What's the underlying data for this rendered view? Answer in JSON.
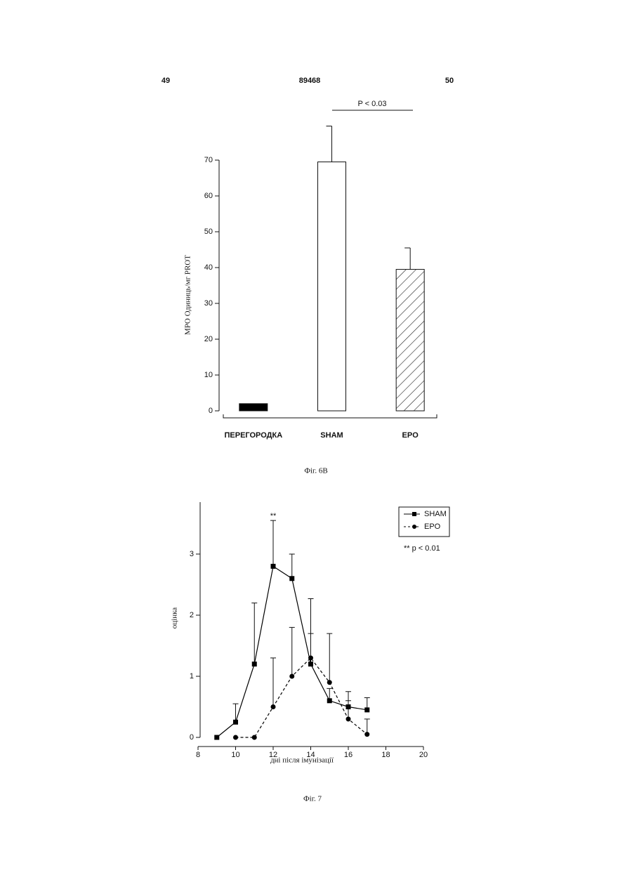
{
  "header": {
    "left": "49",
    "center": "89468",
    "right": "50"
  },
  "chart_data": [
    {
      "type": "bar",
      "ylabel": "MPO Одиниць/мг PROT",
      "categories": [
        "ПЕРЕГОРОДКА",
        "SHAM",
        "EPO"
      ],
      "values": [
        2,
        69.5,
        39.5
      ],
      "errors": [
        null,
        10,
        6
      ],
      "colors": [
        "#000000",
        "#ffffff",
        "#ffffff"
      ],
      "hatch": [
        false,
        false,
        true
      ],
      "ylim": [
        0,
        70
      ],
      "yticks": [
        0,
        10,
        20,
        30,
        40,
        50,
        60,
        70
      ],
      "annotation": "P < 0.03",
      "caption": "Фіг. 6В"
    },
    {
      "type": "line",
      "xlabel": "дні після імунізації",
      "ylabel": "оцінка",
      "x": [
        9,
        10,
        11,
        12,
        13,
        14,
        15,
        16,
        17
      ],
      "series": [
        {
          "name": "SHAM",
          "color": "#000000",
          "marker": "square",
          "dash": false,
          "values": [
            0,
            0.25,
            1.2,
            2.8,
            2.6,
            1.2,
            0.6,
            0.5,
            0.45
          ],
          "errors": [
            null,
            0.3,
            1.0,
            0.75,
            0.4,
            0.5,
            0.2,
            0.1,
            0.2
          ]
        },
        {
          "name": "EPO",
          "color": "#000000",
          "marker": "circle",
          "dash": true,
          "values": [
            null,
            0,
            0,
            0.5,
            1.0,
            1.3,
            0.9,
            0.3,
            0.05
          ],
          "errors": [
            null,
            null,
            null,
            0.8,
            0.8,
            0.97,
            0.8,
            0.45,
            0.25
          ]
        }
      ],
      "xlim": [
        8,
        20
      ],
      "xticks": [
        8,
        10,
        12,
        14,
        16,
        18,
        20
      ],
      "ylim": [
        0,
        3.85
      ],
      "yticks": [
        0,
        1,
        2,
        3
      ],
      "legend": "top-right",
      "significance": "**",
      "annotation": "** p < 0.01",
      "caption": "Фіг. 7"
    }
  ]
}
